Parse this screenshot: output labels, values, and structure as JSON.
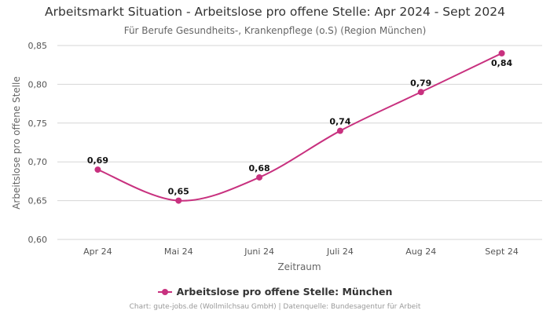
{
  "chart_data": {
    "type": "line",
    "title": "Arbeitsmarkt Situation - Arbeitslose pro offene Stelle: Apr 2024 - Sept 2024",
    "subtitle": "Für Berufe Gesundheits-, Krankenpflege (o.S) (Region München)",
    "xlabel": "Zeitraum",
    "ylabel": "Arbeitslose pro offene Stelle",
    "categories": [
      "Apr 24",
      "Mai 24",
      "Juni 24",
      "Juli 24",
      "Aug 24",
      "Sept 24"
    ],
    "series": [
      {
        "name": "Arbeitslose pro offene Stelle: München",
        "values": [
          0.69,
          0.65,
          0.68,
          0.74,
          0.79,
          0.84
        ],
        "labels": [
          "0,69",
          "0,65",
          "0,68",
          "0,74",
          "0,79",
          "0,84"
        ],
        "color": "#c8317f"
      }
    ],
    "ylim": [
      0.6,
      0.85
    ],
    "yticks": [
      0.6,
      0.65,
      0.7,
      0.75,
      0.8,
      0.85
    ],
    "ytick_labels": [
      "0,60",
      "0,65",
      "0,70",
      "0,75",
      "0,80",
      "0,85"
    ],
    "grid": "horizontal",
    "legend_position": "bottom-center"
  },
  "credits": "Chart: gute-jobs.de (Wollmilchsau GmbH) | Datenquelle: Bundesagentur für Arbeit",
  "colors": {
    "series": "#c8317f",
    "grid": "#d6d6d6"
  }
}
